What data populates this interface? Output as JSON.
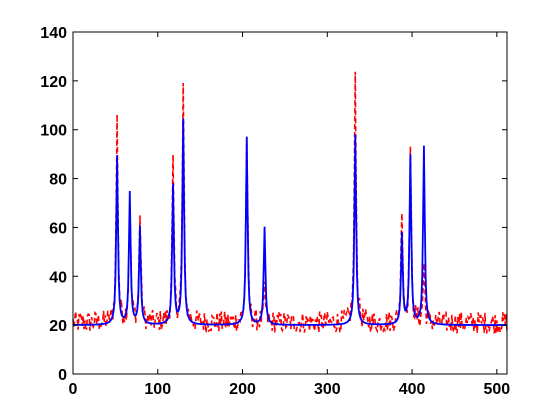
{
  "chart_data": {
    "type": "line",
    "title": "",
    "xlabel": "",
    "ylabel": "",
    "xlim": [
      0,
      512
    ],
    "ylim": [
      0,
      140
    ],
    "grid": false,
    "x_ticks": [
      0,
      100,
      200,
      300,
      400,
      500
    ],
    "y_ticks": [
      0,
      20,
      40,
      60,
      80,
      100,
      120,
      140
    ],
    "baseline": 20,
    "series": [
      {
        "style": "dashed",
        "color": "#ff0000",
        "baseline": 21,
        "noise": 4.5,
        "peaks": [
          {
            "x": 52,
            "y": 104
          },
          {
            "x": 67,
            "y": 72
          },
          {
            "x": 79,
            "y": 66
          },
          {
            "x": 118,
            "y": 86
          },
          {
            "x": 130,
            "y": 117
          },
          {
            "x": 205,
            "y": 98
          },
          {
            "x": 226,
            "y": 35
          },
          {
            "x": 333,
            "y": 124
          },
          {
            "x": 388,
            "y": 69
          },
          {
            "x": 398,
            "y": 92
          },
          {
            "x": 414,
            "y": 45
          }
        ]
      },
      {
        "style": "solid",
        "color": "#0000ff",
        "baseline": 20,
        "noise": 0,
        "peaks": [
          {
            "x": 52,
            "y": 89
          },
          {
            "x": 67,
            "y": 74
          },
          {
            "x": 79,
            "y": 60
          },
          {
            "x": 118,
            "y": 77
          },
          {
            "x": 130,
            "y": 104
          },
          {
            "x": 205,
            "y": 97
          },
          {
            "x": 226,
            "y": 60
          },
          {
            "x": 333,
            "y": 98
          },
          {
            "x": 388,
            "y": 57
          },
          {
            "x": 398,
            "y": 89
          },
          {
            "x": 414,
            "y": 93
          }
        ]
      }
    ]
  }
}
